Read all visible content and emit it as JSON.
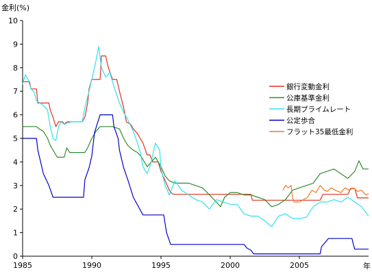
{
  "chart_data": {
    "type": "line",
    "ylabel": "金利(%)",
    "xlabel": "年",
    "ylim": [
      0,
      10
    ],
    "xlim": [
      1985,
      2010
    ],
    "y_ticks": [
      "0",
      "1",
      "2",
      "3",
      "4",
      "5",
      "6",
      "7",
      "8",
      "9",
      "10"
    ],
    "x_ticks": [
      {
        "value": 1985,
        "label": "1985"
      },
      {
        "value": 1990,
        "label": "1990"
      },
      {
        "value": 1995,
        "label": "1995"
      },
      {
        "value": 2000,
        "label": "2000"
      },
      {
        "value": 2005,
        "label": "2005"
      }
    ],
    "grid": false,
    "legend_position": "right",
    "series": [
      {
        "name": "銀行変動金利",
        "color": "#e0301e",
        "points": [
          [
            1985.0,
            7.4
          ],
          [
            1985.5,
            7.4
          ],
          [
            1985.6,
            7.1
          ],
          [
            1986.0,
            7.1
          ],
          [
            1986.1,
            6.5
          ],
          [
            1986.9,
            6.5
          ],
          [
            1987.0,
            6.2
          ],
          [
            1987.2,
            5.9
          ],
          [
            1987.4,
            5.5
          ],
          [
            1987.6,
            5.7
          ],
          [
            1987.9,
            5.7
          ],
          [
            1988.0,
            5.6
          ],
          [
            1988.2,
            5.7
          ],
          [
            1989.3,
            5.7
          ],
          [
            1989.5,
            5.9
          ],
          [
            1989.7,
            6.5
          ],
          [
            1989.8,
            7.1
          ],
          [
            1990.0,
            7.5
          ],
          [
            1990.6,
            7.5
          ],
          [
            1990.7,
            8.5
          ],
          [
            1991.0,
            8.5
          ],
          [
            1991.2,
            8.0
          ],
          [
            1991.5,
            7.5
          ],
          [
            1991.8,
            7.5
          ],
          [
            1992.0,
            7.0
          ],
          [
            1992.3,
            6.3
          ],
          [
            1992.5,
            5.7
          ],
          [
            1992.8,
            5.6
          ],
          [
            1993.0,
            5.4
          ],
          [
            1993.3,
            5.2
          ],
          [
            1993.5,
            5.0
          ],
          [
            1993.7,
            4.8
          ],
          [
            1994.0,
            4.3
          ],
          [
            1994.2,
            4.3
          ],
          [
            1994.4,
            4.0
          ],
          [
            1994.8,
            4.0
          ],
          [
            1995.0,
            3.6
          ],
          [
            1995.3,
            3.2
          ],
          [
            1995.6,
            2.8
          ],
          [
            1995.8,
            2.65
          ],
          [
            1996.0,
            2.625
          ],
          [
            2001.5,
            2.625
          ],
          [
            2001.6,
            2.375
          ],
          [
            2006.5,
            2.375
          ],
          [
            2006.7,
            2.625
          ],
          [
            2008.5,
            2.625
          ],
          [
            2008.7,
            2.875
          ],
          [
            2009.0,
            2.875
          ],
          [
            2009.2,
            2.475
          ],
          [
            2010.0,
            2.475
          ]
        ]
      },
      {
        "name": "公庫基準金利",
        "color": "#2e8b2e",
        "points": [
          [
            1985.0,
            5.5
          ],
          [
            1986.0,
            5.5
          ],
          [
            1986.2,
            5.4
          ],
          [
            1986.5,
            5.3
          ],
          [
            1986.8,
            5.0
          ],
          [
            1987.0,
            4.7
          ],
          [
            1987.5,
            4.2
          ],
          [
            1988.0,
            4.2
          ],
          [
            1988.2,
            4.6
          ],
          [
            1988.4,
            4.4
          ],
          [
            1989.0,
            4.4
          ],
          [
            1989.5,
            4.4
          ],
          [
            1989.7,
            4.6
          ],
          [
            1990.0,
            5.0
          ],
          [
            1990.3,
            5.3
          ],
          [
            1990.6,
            5.5
          ],
          [
            1991.0,
            5.5
          ],
          [
            1991.5,
            5.5
          ],
          [
            1992.0,
            5.4
          ],
          [
            1992.3,
            5.0
          ],
          [
            1992.6,
            4.7
          ],
          [
            1993.0,
            4.5
          ],
          [
            1993.3,
            4.4
          ],
          [
            1993.6,
            4.2
          ],
          [
            1994.0,
            3.8
          ],
          [
            1994.3,
            4.0
          ],
          [
            1994.6,
            4.2
          ],
          [
            1995.0,
            3.8
          ],
          [
            1995.3,
            3.4
          ],
          [
            1995.6,
            3.2
          ],
          [
            1996.0,
            3.1
          ],
          [
            1997.0,
            3.1
          ],
          [
            1997.5,
            3.0
          ],
          [
            1998.0,
            2.9
          ],
          [
            1998.5,
            2.6
          ],
          [
            1999.0,
            2.3
          ],
          [
            1999.3,
            2.1
          ],
          [
            1999.6,
            2.5
          ],
          [
            2000.0,
            2.7
          ],
          [
            2000.5,
            2.7
          ],
          [
            2001.0,
            2.6
          ],
          [
            2001.5,
            2.6
          ],
          [
            2002.0,
            2.5
          ],
          [
            2002.5,
            2.4
          ],
          [
            2003.0,
            2.1
          ],
          [
            2003.5,
            2.2
          ],
          [
            2004.0,
            2.4
          ],
          [
            2004.5,
            2.8
          ],
          [
            2005.0,
            2.9
          ],
          [
            2005.5,
            3.0
          ],
          [
            2006.0,
            3.1
          ],
          [
            2006.5,
            3.5
          ],
          [
            2007.0,
            3.6
          ],
          [
            2007.5,
            3.7
          ],
          [
            2008.0,
            3.5
          ],
          [
            2008.5,
            3.3
          ],
          [
            2009.0,
            3.6
          ],
          [
            2009.3,
            4.05
          ],
          [
            2009.6,
            3.7
          ],
          [
            2010.0,
            3.7
          ]
        ]
      },
      {
        "name": "長期プライムレート",
        "color": "#30e0f0",
        "points": [
          [
            1985.0,
            7.3
          ],
          [
            1985.2,
            7.7
          ],
          [
            1985.4,
            7.5
          ],
          [
            1985.6,
            7.1
          ],
          [
            1985.8,
            7.0
          ],
          [
            1986.0,
            6.6
          ],
          [
            1986.5,
            6.4
          ],
          [
            1986.8,
            6.2
          ],
          [
            1987.0,
            5.5
          ],
          [
            1987.2,
            5.0
          ],
          [
            1987.4,
            4.9
          ],
          [
            1987.6,
            5.5
          ],
          [
            1987.8,
            5.7
          ],
          [
            1988.0,
            5.6
          ],
          [
            1988.5,
            5.7
          ],
          [
            1989.0,
            5.7
          ],
          [
            1989.3,
            5.7
          ],
          [
            1989.5,
            6.3
          ],
          [
            1989.8,
            7.0
          ],
          [
            1990.0,
            7.5
          ],
          [
            1990.3,
            8.3
          ],
          [
            1990.5,
            8.9
          ],
          [
            1990.7,
            8.0
          ],
          [
            1991.0,
            7.6
          ],
          [
            1991.3,
            7.8
          ],
          [
            1991.6,
            7.2
          ],
          [
            1992.0,
            6.5
          ],
          [
            1992.3,
            6.1
          ],
          [
            1992.6,
            5.8
          ],
          [
            1993.0,
            5.3
          ],
          [
            1993.3,
            4.8
          ],
          [
            1993.5,
            4.4
          ],
          [
            1993.7,
            3.8
          ],
          [
            1994.0,
            3.5
          ],
          [
            1994.3,
            4.0
          ],
          [
            1994.6,
            4.8
          ],
          [
            1994.9,
            4.5
          ],
          [
            1995.0,
            3.7
          ],
          [
            1995.3,
            3.0
          ],
          [
            1995.6,
            2.6
          ],
          [
            1996.0,
            3.2
          ],
          [
            1996.5,
            2.8
          ],
          [
            1997.0,
            2.6
          ],
          [
            1997.5,
            2.4
          ],
          [
            1998.0,
            2.3
          ],
          [
            1998.5,
            2.0
          ],
          [
            1999.0,
            2.4
          ],
          [
            1999.5,
            2.3
          ],
          [
            2000.0,
            2.2
          ],
          [
            2000.5,
            2.2
          ],
          [
            2001.0,
            1.8
          ],
          [
            2001.5,
            1.7
          ],
          [
            2002.0,
            1.7
          ],
          [
            2002.5,
            1.5
          ],
          [
            2003.0,
            1.25
          ],
          [
            2003.5,
            1.7
          ],
          [
            2004.0,
            1.8
          ],
          [
            2004.5,
            1.6
          ],
          [
            2005.0,
            1.6
          ],
          [
            2005.5,
            1.65
          ],
          [
            2006.0,
            2.1
          ],
          [
            2006.5,
            2.3
          ],
          [
            2007.0,
            2.3
          ],
          [
            2007.5,
            2.4
          ],
          [
            2008.0,
            2.3
          ],
          [
            2008.5,
            2.5
          ],
          [
            2009.0,
            2.3
          ],
          [
            2009.5,
            2.1
          ],
          [
            2010.0,
            1.7
          ]
        ]
      },
      {
        "name": "公定歩合",
        "color": "#0000c8",
        "points": [
          [
            1985.0,
            5.0
          ],
          [
            1986.0,
            5.0
          ],
          [
            1986.1,
            4.5
          ],
          [
            1986.3,
            4.0
          ],
          [
            1986.5,
            3.5
          ],
          [
            1986.9,
            3.0
          ],
          [
            1987.2,
            2.5
          ],
          [
            1989.4,
            2.5
          ],
          [
            1989.5,
            3.25
          ],
          [
            1989.8,
            3.75
          ],
          [
            1990.0,
            4.25
          ],
          [
            1990.2,
            5.25
          ],
          [
            1990.6,
            6.0
          ],
          [
            1991.5,
            6.0
          ],
          [
            1991.6,
            5.5
          ],
          [
            1991.9,
            5.0
          ],
          [
            1992.0,
            4.5
          ],
          [
            1992.3,
            3.75
          ],
          [
            1992.6,
            3.25
          ],
          [
            1993.0,
            2.5
          ],
          [
            1993.7,
            1.75
          ],
          [
            1995.2,
            1.75
          ],
          [
            1995.4,
            1.0
          ],
          [
            1995.7,
            0.5
          ],
          [
            2001.0,
            0.5
          ],
          [
            2001.2,
            0.35
          ],
          [
            2001.5,
            0.25
          ],
          [
            2001.7,
            0.1
          ],
          [
            2006.5,
            0.1
          ],
          [
            2006.6,
            0.4
          ],
          [
            2007.1,
            0.75
          ],
          [
            2008.8,
            0.75
          ],
          [
            2008.9,
            0.5
          ],
          [
            2009.0,
            0.3
          ],
          [
            2010.0,
            0.3
          ]
        ]
      },
      {
        "name": "フラット35最低金利",
        "color": "#f07820",
        "points": [
          [
            2003.8,
            2.8
          ],
          [
            2004.0,
            3.0
          ],
          [
            2004.2,
            2.9
          ],
          [
            2004.4,
            3.0
          ],
          [
            2004.5,
            2.5
          ],
          [
            2004.6,
            2.3
          ],
          [
            2004.8,
            2.3
          ],
          [
            2005.0,
            2.3
          ],
          [
            2005.3,
            2.4
          ],
          [
            2005.6,
            2.5
          ],
          [
            2005.9,
            2.8
          ],
          [
            2006.2,
            2.7
          ],
          [
            2006.5,
            3.0
          ],
          [
            2006.8,
            2.8
          ],
          [
            2007.0,
            2.75
          ],
          [
            2007.3,
            2.9
          ],
          [
            2007.6,
            2.8
          ],
          [
            2008.0,
            2.7
          ],
          [
            2008.3,
            2.9
          ],
          [
            2008.6,
            2.8
          ],
          [
            2008.9,
            2.9
          ],
          [
            2009.2,
            2.75
          ],
          [
            2009.5,
            2.8
          ],
          [
            2009.8,
            2.6
          ],
          [
            2010.0,
            2.65
          ]
        ]
      }
    ]
  }
}
